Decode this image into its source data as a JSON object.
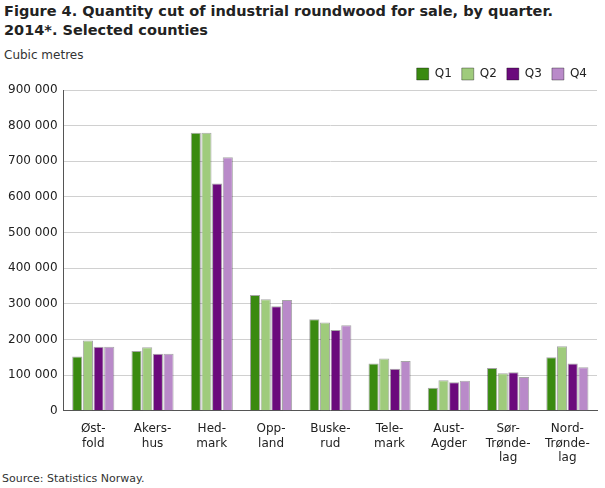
{
  "chart_data": {
    "type": "bar",
    "title": "Figure 4. Quantity cut of industrial roundwood for sale, by quarter. 2014*. Selected counties",
    "y_label": "Cubic metres",
    "source": "Source: Statistics Norway.",
    "categories": [
      "Øst-\nfold",
      "Akers-\nhus",
      "Hed-\nmark",
      "Opp-\nland",
      "Buske-\nrud",
      "Tele-\nmark",
      "Aust-\nAgder",
      "Sør-\nTrønde-\nlag",
      "Nord-\nTrønde-\nlag"
    ],
    "series": [
      {
        "name": "Q1",
        "color": "#3a8a10",
        "values": [
          152000,
          168000,
          780000,
          325000,
          257000,
          133000,
          65000,
          120000,
          150000
        ]
      },
      {
        "name": "Q2",
        "color": "#9fcb7c",
        "values": [
          197000,
          178000,
          780000,
          313000,
          248000,
          147000,
          86000,
          105000,
          181000
        ]
      },
      {
        "name": "Q3",
        "color": "#6b0a7c",
        "values": [
          180000,
          160000,
          638000,
          293000,
          227000,
          118000,
          80000,
          108000,
          133000
        ]
      },
      {
        "name": "Q4",
        "color": "#b98ac9",
        "values": [
          180000,
          160000,
          711000,
          311000,
          240000,
          140000,
          84000,
          95000,
          122000
        ]
      }
    ],
    "ylim": [
      0,
      900000
    ],
    "yticks": [
      0,
      {
        "value": 100000,
        "label": "100 000"
      },
      {
        "value": 200000,
        "label": "200 000"
      },
      {
        "value": 300000,
        "label": "300 000"
      },
      {
        "value": 400000,
        "label": "400 000"
      },
      {
        "value": 500000,
        "label": "500 000"
      },
      {
        "value": 600000,
        "label": "600 000"
      },
      {
        "value": 700000,
        "label": "700 000"
      },
      {
        "value": 800000,
        "label": "800 000"
      },
      {
        "value": 900000,
        "label": "900 000"
      }
    ],
    "grid": true,
    "legend": "top-right"
  }
}
